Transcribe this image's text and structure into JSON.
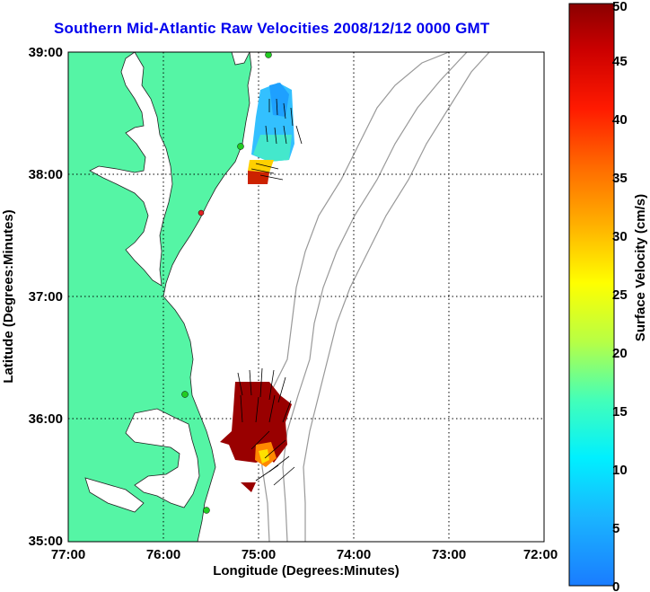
{
  "title": "Southern Mid-Atlantic Raw Velocities 2008/12/12 0000 GMT",
  "x_axis": {
    "label": "Longitude (Degrees:Minutes)",
    "ticks": [
      "77:00",
      "76:00",
      "75:00",
      "74:00",
      "73:00",
      "72:00"
    ]
  },
  "y_axis": {
    "label": "Latitude (Degrees:Minutes)",
    "ticks": [
      "39:00",
      "38:00",
      "37:00",
      "36:00",
      "35:00"
    ]
  },
  "colorbar": {
    "label": "Surface Velocity (cm/s)",
    "ticks": [
      "0",
      "5",
      "10",
      "15",
      "20",
      "25",
      "30",
      "35",
      "40",
      "45",
      "50"
    ],
    "min": 0,
    "max": 50
  },
  "colors": {
    "land": "#55f5a5",
    "title": "#0000ee",
    "bathymetry": "#999999",
    "station": "#22cc22"
  }
}
